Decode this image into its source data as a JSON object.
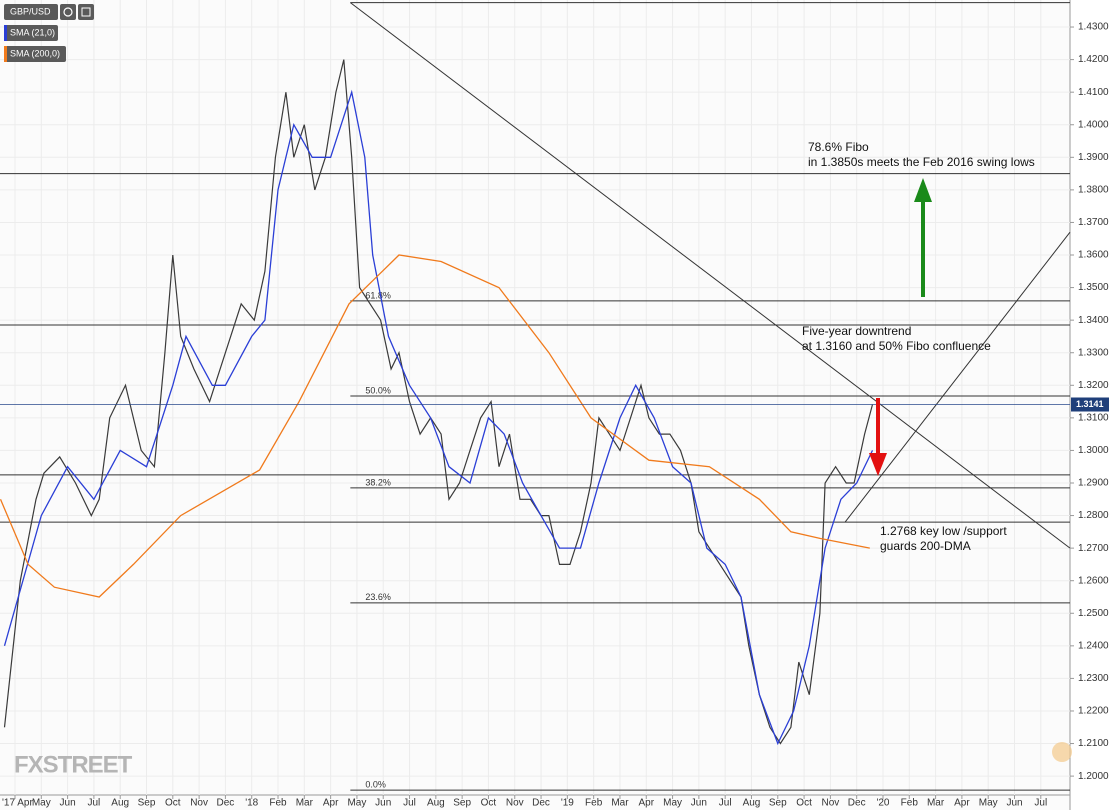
{
  "chart_data": {
    "type": "line",
    "series": [
      {
        "name": "GBP/USD",
        "color": "#3a3a3a",
        "x": [
          -0.4,
          0.2,
          0.8,
          1.1,
          1.7,
          2.3,
          2.9,
          3.2,
          3.6,
          4.2,
          4.8,
          5.3,
          5.7,
          6.0,
          6.3,
          6.8,
          7.4,
          8.0,
          8.6,
          9.1,
          9.5,
          9.9,
          10.3,
          10.6,
          11.0,
          11.4,
          11.8,
          12.2,
          12.5,
          12.8,
          13.1,
          13.5,
          13.9,
          14.3,
          14.6,
          15.0,
          15.4,
          15.8,
          16.2,
          16.5,
          16.9,
          17.3,
          17.7,
          18.1,
          18.4,
          18.8,
          19.2,
          19.6,
          20.0,
          20.3,
          20.7,
          21.1,
          21.5,
          21.9,
          22.2,
          22.6,
          23.0,
          23.4,
          23.8,
          24.1,
          24.5,
          24.9,
          25.3,
          25.7,
          26.0,
          26.4,
          26.8,
          27.2,
          27.6,
          27.9,
          28.3,
          28.7,
          29.1,
          29.5,
          29.8,
          30.2,
          30.6,
          30.8,
          31.2,
          31.6,
          31.9,
          32.3,
          32.6
        ],
        "values": [
          1.215,
          1.26,
          1.285,
          1.293,
          1.298,
          1.29,
          1.28,
          1.285,
          1.31,
          1.32,
          1.3,
          1.295,
          1.33,
          1.36,
          1.335,
          1.325,
          1.315,
          1.33,
          1.345,
          1.34,
          1.355,
          1.39,
          1.41,
          1.39,
          1.4,
          1.38,
          1.39,
          1.41,
          1.42,
          1.39,
          1.35,
          1.345,
          1.34,
          1.325,
          1.33,
          1.315,
          1.305,
          1.31,
          1.305,
          1.285,
          1.29,
          1.3,
          1.31,
          1.315,
          1.295,
          1.305,
          1.285,
          1.285,
          1.28,
          1.28,
          1.265,
          1.265,
          1.275,
          1.29,
          1.31,
          1.305,
          1.3,
          1.31,
          1.32,
          1.31,
          1.305,
          1.305,
          1.3,
          1.29,
          1.275,
          1.27,
          1.265,
          1.26,
          1.255,
          1.24,
          1.225,
          1.215,
          1.21,
          1.215,
          1.235,
          1.225,
          1.25,
          1.29,
          1.295,
          1.29,
          1.29,
          1.305,
          1.3141
        ]
      },
      {
        "name": "SMA (21,0)",
        "color": "#2b3fd6",
        "x": [
          -0.4,
          1,
          2,
          3,
          4,
          5,
          6,
          6.5,
          7.5,
          8,
          9,
          9.5,
          10,
          10.6,
          11.3,
          12,
          12.8,
          13.3,
          13.6,
          14.2,
          15,
          15.8,
          16.5,
          17.3,
          18,
          18.6,
          19.3,
          20,
          20.7,
          21.5,
          22.2,
          23,
          23.6,
          24.3,
          25,
          25.7,
          26.3,
          27,
          27.6,
          28.3,
          29,
          29.6,
          30.2,
          30.8,
          31.4,
          32,
          32.6
        ],
        "values": [
          1.24,
          1.28,
          1.295,
          1.285,
          1.3,
          1.295,
          1.32,
          1.335,
          1.32,
          1.32,
          1.335,
          1.34,
          1.38,
          1.4,
          1.39,
          1.39,
          1.41,
          1.39,
          1.36,
          1.335,
          1.32,
          1.31,
          1.295,
          1.29,
          1.31,
          1.305,
          1.29,
          1.28,
          1.27,
          1.27,
          1.29,
          1.31,
          1.32,
          1.31,
          1.295,
          1.29,
          1.27,
          1.265,
          1.255,
          1.225,
          1.21,
          1.22,
          1.24,
          1.27,
          1.285,
          1.29,
          1.3
        ]
      },
      {
        "name": "SMA (200,0)",
        "color": "#f07a1c",
        "x": [
          -0.55,
          0.5,
          1.5,
          3.2,
          4.5,
          6.3,
          9.3,
          10.8,
          12.7,
          14.6,
          16.2,
          18.4,
          20.3,
          21.9,
          24.1,
          26.4,
          28.3,
          29.5,
          30.6,
          32.5
        ],
        "values": [
          1.285,
          1.265,
          1.258,
          1.255,
          1.265,
          1.28,
          1.294,
          1.315,
          1.345,
          1.36,
          1.358,
          1.35,
          1.33,
          1.31,
          1.297,
          1.295,
          1.285,
          1.275,
          1.273,
          1.27
        ]
      }
    ],
    "xlim": [
      -0.57,
      40.11
    ],
    "xticks": [
      {
        "value": 0,
        "label": "'17 Apr"
      },
      {
        "value": 1,
        "label": "May"
      },
      {
        "value": 2,
        "label": "Jun"
      },
      {
        "value": 3,
        "label": "Jul"
      },
      {
        "value": 4,
        "label": "Aug"
      },
      {
        "value": 5,
        "label": "Sep"
      },
      {
        "value": 6,
        "label": "Oct"
      },
      {
        "value": 7,
        "label": "Nov"
      },
      {
        "value": 8,
        "label": "Dec"
      },
      {
        "value": 9,
        "label": "'18"
      },
      {
        "value": 10,
        "label": "Feb"
      },
      {
        "value": 11,
        "label": "Mar"
      },
      {
        "value": 12,
        "label": "Apr"
      },
      {
        "value": 13,
        "label": "May"
      },
      {
        "value": 14,
        "label": "Jun"
      },
      {
        "value": 15,
        "label": "Jul"
      },
      {
        "value": 16,
        "label": "Aug"
      },
      {
        "value": 17,
        "label": "Sep"
      },
      {
        "value": 18,
        "label": "Oct"
      },
      {
        "value": 19,
        "label": "Nov"
      },
      {
        "value": 20,
        "label": "Dec"
      },
      {
        "value": 21,
        "label": "'19"
      },
      {
        "value": 22,
        "label": "Feb"
      },
      {
        "value": 23,
        "label": "Mar"
      },
      {
        "value": 24,
        "label": "Apr"
      },
      {
        "value": 25,
        "label": "May"
      },
      {
        "value": 26,
        "label": "Jun"
      },
      {
        "value": 27,
        "label": "Jul"
      },
      {
        "value": 28,
        "label": "Aug"
      },
      {
        "value": 29,
        "label": "Sep"
      },
      {
        "value": 30,
        "label": "Oct"
      },
      {
        "value": 31,
        "label": "Nov"
      },
      {
        "value": 32,
        "label": "Dec"
      },
      {
        "value": 33,
        "label": "'20"
      },
      {
        "value": 34,
        "label": "Feb"
      },
      {
        "value": 35,
        "label": "Mar"
      },
      {
        "value": 36,
        "label": "Apr"
      },
      {
        "value": 37,
        "label": "May"
      },
      {
        "value": 38,
        "label": "Jun"
      },
      {
        "value": 39,
        "label": "Jul"
      }
    ],
    "ylim": [
      1.1942,
      1.4383
    ],
    "yticks": [
      {
        "value": 1.2,
        "label": "1.2000"
      },
      {
        "value": 1.21,
        "label": "1.2100"
      },
      {
        "value": 1.22,
        "label": "1.2200"
      },
      {
        "value": 1.23,
        "label": "1.2300"
      },
      {
        "value": 1.24,
        "label": "1.2400"
      },
      {
        "value": 1.25,
        "label": "1.2500"
      },
      {
        "value": 1.26,
        "label": "1.2600"
      },
      {
        "value": 1.27,
        "label": "1.2700"
      },
      {
        "value": 1.28,
        "label": "1.2800"
      },
      {
        "value": 1.29,
        "label": "1.2900"
      },
      {
        "value": 1.3,
        "label": "1.3000"
      },
      {
        "value": 1.31,
        "label": "1.3100"
      },
      {
        "value": 1.32,
        "label": "1.3200"
      },
      {
        "value": 1.33,
        "label": "1.3300"
      },
      {
        "value": 1.34,
        "label": "1.3400"
      },
      {
        "value": 1.35,
        "label": "1.3500"
      },
      {
        "value": 1.36,
        "label": "1.3600"
      },
      {
        "value": 1.37,
        "label": "1.3700"
      },
      {
        "value": 1.38,
        "label": "1.3800"
      },
      {
        "value": 1.39,
        "label": "1.3900"
      },
      {
        "value": 1.4,
        "label": "1.4000"
      },
      {
        "value": 1.41,
        "label": "1.4100"
      },
      {
        "value": 1.42,
        "label": "1.4200"
      },
      {
        "value": 1.43,
        "label": "1.4300"
      }
    ],
    "grid": true,
    "last_price": {
      "value": 1.3141,
      "label": "1.3141"
    },
    "levels": [
      1.4375,
      1.385,
      1.3385,
      1.2925,
      1.278
    ],
    "fibs": [
      {
        "label": "61.8%",
        "value": 1.3459
      },
      {
        "label": "50.0%",
        "value": 1.3167
      },
      {
        "label": "38.2%",
        "value": 1.2885
      },
      {
        "label": "23.6%",
        "value": 1.2532
      },
      {
        "label": "0.0%",
        "value": 1.1957
      }
    ],
    "trendlines": [
      {
        "x": [
          12.75,
          40.11
        ],
        "y": [
          1.4375,
          1.27
        ]
      },
      {
        "x": [
          31.56,
          40.11
        ],
        "y": [
          1.278,
          1.367
        ]
      }
    ],
    "annotations": [
      {
        "lines": [
          "78.6% Fibo",
          "in 1.3850s meets the Feb 2016 swing lows"
        ]
      },
      {
        "lines": [
          "Five-year downtrend",
          "at 1.3160 and 50% Fibo confluence"
        ]
      },
      {
        "lines": [
          "1.2768 key low /support",
          " guards 200-DMA"
        ]
      }
    ],
    "watermark": "FXSTREET"
  }
}
